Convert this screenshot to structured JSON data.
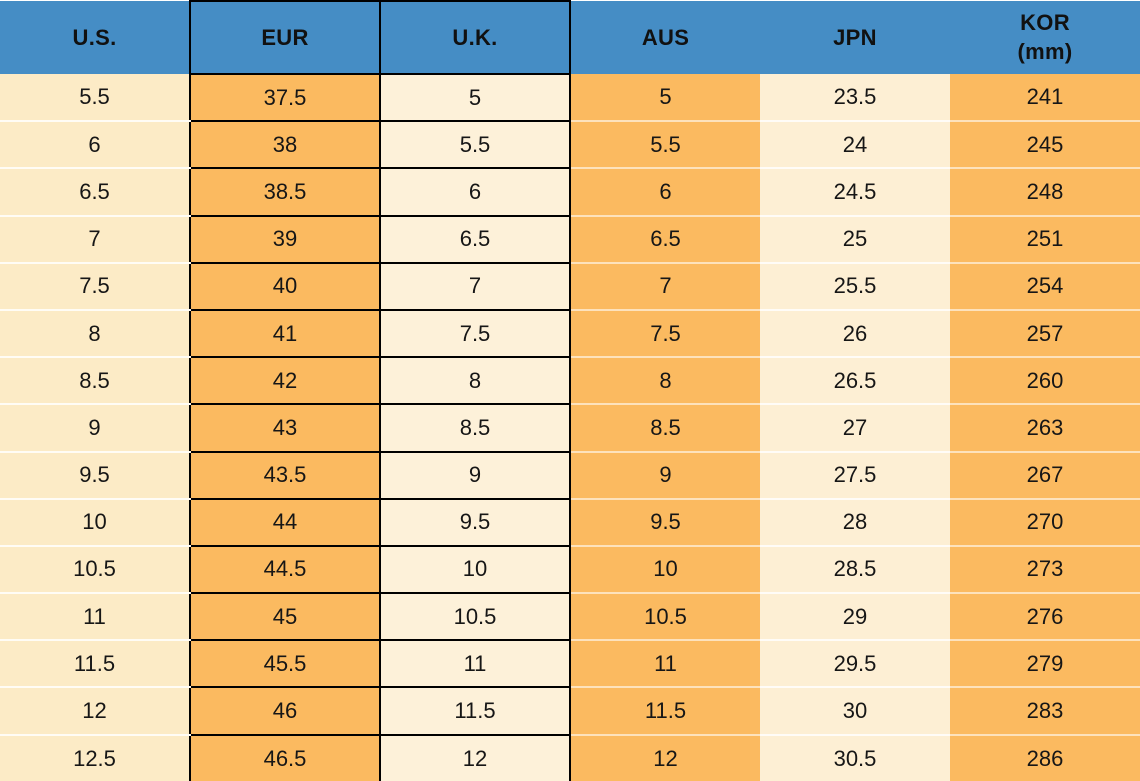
{
  "chart_data": {
    "type": "table",
    "columns": [
      {
        "key": "us",
        "label": "U.S."
      },
      {
        "key": "eur",
        "label": "EUR"
      },
      {
        "key": "uk",
        "label": "U.K."
      },
      {
        "key": "aus",
        "label": "AUS"
      },
      {
        "key": "jpn",
        "label": "JPN"
      },
      {
        "key": "kor",
        "label": "KOR",
        "sublabel": "(mm)"
      }
    ],
    "rows": [
      [
        "5.5",
        "37.5",
        "5",
        "5",
        "23.5",
        "241"
      ],
      [
        "6",
        "38",
        "5.5",
        "5.5",
        "24",
        "245"
      ],
      [
        "6.5",
        "38.5",
        "6",
        "6",
        "24.5",
        "248"
      ],
      [
        "7",
        "39",
        "6.5",
        "6.5",
        "25",
        "251"
      ],
      [
        "7.5",
        "40",
        "7",
        "7",
        "25.5",
        "254"
      ],
      [
        "8",
        "41",
        "7.5",
        "7.5",
        "26",
        "257"
      ],
      [
        "8.5",
        "42",
        "8",
        "8",
        "26.5",
        "260"
      ],
      [
        "9",
        "43",
        "8.5",
        "8.5",
        "27",
        "263"
      ],
      [
        "9.5",
        "43.5",
        "9",
        "9",
        "27.5",
        "267"
      ],
      [
        "10",
        "44",
        "9.5",
        "9.5",
        "28",
        "270"
      ],
      [
        "10.5",
        "44.5",
        "10",
        "10",
        "28.5",
        "273"
      ],
      [
        "11",
        "45",
        "10.5",
        "10.5",
        "29",
        "276"
      ],
      [
        "11.5",
        "45.5",
        "11",
        "11",
        "29.5",
        "279"
      ],
      [
        "12",
        "46",
        "11.5",
        "11.5",
        "30",
        "283"
      ],
      [
        "12.5",
        "46.5",
        "12",
        "12",
        "30.5",
        "286"
      ]
    ]
  },
  "colors": {
    "header_blue": "#458DC5",
    "orange": "#FBBA60",
    "cream_us": "#FCEBC6",
    "cream_uk": "#FDF1D9",
    "cream_jpn": "#FDEFD4",
    "grid_black": "#000000",
    "text": "#161616"
  }
}
